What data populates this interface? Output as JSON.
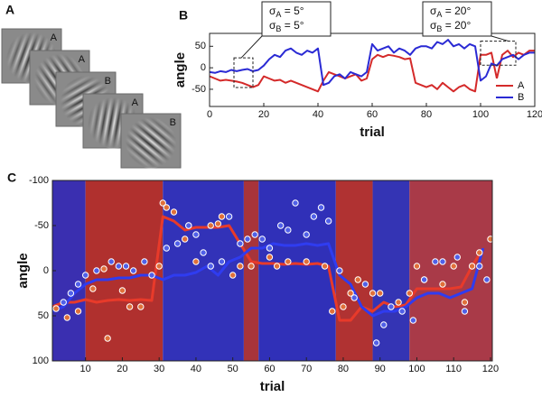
{
  "panel_labels": [
    "A",
    "B",
    "C"
  ],
  "stimuli": {
    "labels": [
      "A",
      "A",
      "B",
      "A",
      "B"
    ],
    "colors": [
      "#d42a2a",
      "#d42a2a",
      "#3a3ac8",
      "#d42a2a",
      "#3a3ac8"
    ]
  },
  "chart_data": [
    {
      "type": "line",
      "xlabel": "trial",
      "ylabel": "angle",
      "xlim": [
        0,
        120
      ],
      "ylim": [
        -90,
        80
      ],
      "xticks": [
        0,
        20,
        40,
        60,
        80,
        100,
        120
      ],
      "yticks": [
        -50,
        0,
        50
      ],
      "grid": false,
      "legend": "lower right",
      "x": [
        0,
        2,
        4,
        6,
        8,
        10,
        12,
        14,
        16,
        18,
        20,
        22,
        24,
        26,
        28,
        30,
        32,
        34,
        36,
        38,
        40,
        42,
        44,
        46,
        48,
        50,
        52,
        54,
        56,
        58,
        60,
        62,
        64,
        66,
        68,
        70,
        72,
        74,
        76,
        78,
        80,
        82,
        84,
        86,
        88,
        90,
        92,
        94,
        96,
        98,
        100,
        102,
        104,
        106,
        108,
        110,
        112,
        114,
        116,
        118,
        120
      ],
      "series": [
        {
          "name": "A",
          "color": "#d42a2a",
          "values": [
            -20,
            -25,
            -30,
            -28,
            -30,
            -32,
            -35,
            -40,
            -45,
            -40,
            -20,
            -25,
            -30,
            -28,
            -35,
            -30,
            -35,
            -40,
            -45,
            -50,
            -55,
            -30,
            -10,
            -15,
            -20,
            -25,
            -20,
            -15,
            -30,
            -25,
            20,
            30,
            25,
            30,
            28,
            25,
            20,
            22,
            -35,
            -40,
            -45,
            -40,
            -50,
            -35,
            -45,
            -55,
            -45,
            -40,
            -50,
            -55,
            30,
            30,
            35,
            -25,
            30,
            40,
            25,
            35,
            30,
            40,
            40
          ]
        },
        {
          "name": "B",
          "color": "#2a2ad4",
          "values": [
            -10,
            -12,
            -8,
            -10,
            -5,
            -8,
            -5,
            -3,
            -8,
            -5,
            5,
            20,
            30,
            25,
            40,
            45,
            35,
            30,
            40,
            35,
            45,
            -40,
            -35,
            -20,
            -15,
            -25,
            -10,
            -15,
            -20,
            -10,
            55,
            40,
            45,
            50,
            35,
            45,
            40,
            30,
            45,
            50,
            50,
            45,
            60,
            55,
            65,
            50,
            55,
            45,
            55,
            50,
            -30,
            -20,
            10,
            5,
            20,
            25,
            30,
            20,
            30,
            35,
            35
          ]
        }
      ],
      "annotations": [
        {
          "lines": [
            {
              "symbol": "σ",
              "subscript": "A",
              "text": " = 5°"
            },
            {
              "symbol": "σ",
              "subscript": "B",
              "text": " = 5°"
            }
          ],
          "xrange": [
            9,
            16
          ],
          "yrange": [
            -46,
            23
          ]
        },
        {
          "lines": [
            {
              "symbol": "σ",
              "subscript": "A",
              "text": " = 20°"
            },
            {
              "symbol": "σ",
              "subscript": "B",
              "text": " = 20°"
            }
          ],
          "xrange": [
            100,
            113
          ],
          "yrange": [
            6,
            62
          ]
        }
      ]
    },
    {
      "type": "line",
      "xlabel": "trial",
      "ylabel": "angle",
      "xlim": [
        1,
        120.5
      ],
      "ylim": [
        -100,
        100
      ],
      "y_inverted": true,
      "xticks": [
        10,
        20,
        30,
        40,
        50,
        60,
        70,
        80,
        90,
        100,
        110,
        120
      ],
      "yticks": [
        -100,
        -50,
        0,
        50,
        100
      ],
      "background_bands": [
        {
          "x": [
            1,
            10
          ],
          "color": "#3a2fb0"
        },
        {
          "x": [
            10,
            31
          ],
          "color": "#b0302e"
        },
        {
          "x": [
            31,
            53
          ],
          "color": "#3232b8"
        },
        {
          "x": [
            53,
            57
          ],
          "color": "#a8343a"
        },
        {
          "x": [
            57,
            78
          ],
          "color": "#3030b8"
        },
        {
          "x": [
            78,
            88
          ],
          "color": "#b03232"
        },
        {
          "x": [
            88,
            98
          ],
          "color": "#3434b4"
        },
        {
          "x": [
            98,
            120.5
          ],
          "color": "#a93a48"
        }
      ],
      "x": [
        1,
        4,
        7,
        10,
        13,
        16,
        19,
        22,
        25,
        28,
        31,
        34,
        37,
        40,
        43,
        46,
        49,
        52,
        55,
        58,
        61,
        64,
        67,
        70,
        73,
        76,
        79,
        82,
        85,
        88,
        91,
        94,
        97,
        100,
        103,
        106,
        109,
        112,
        115,
        118
      ],
      "series": [
        {
          "color": "#e83a2a",
          "values": [
            40,
            35,
            35,
            32,
            35,
            33,
            32,
            33,
            32,
            33,
            -60,
            -55,
            -45,
            -48,
            -48,
            -48,
            -50,
            -30,
            -10,
            -8,
            -8,
            -7,
            -8,
            -7,
            -8,
            -5,
            55,
            55,
            40,
            45,
            35,
            40,
            38,
            20,
            20,
            20,
            20,
            18,
            -5,
            -25
          ]
        },
        {
          "color": "#2f3cf0",
          "values": [
            45,
            40,
            25,
            15,
            10,
            10,
            8,
            8,
            5,
            5,
            10,
            5,
            5,
            2,
            -5,
            5,
            -10,
            -15,
            -25,
            -25,
            -30,
            -28,
            -28,
            -30,
            -28,
            -30,
            5,
            15,
            40,
            50,
            45,
            45,
            40,
            30,
            25,
            25,
            30,
            25,
            20,
            -25
          ]
        }
      ],
      "observations": [
        {
          "color": "#e0703a",
          "x": [
            2,
            5,
            8,
            12,
            15,
            16,
            20,
            22,
            25,
            30,
            31,
            32,
            34,
            37,
            38,
            40,
            44,
            46,
            47,
            50,
            52,
            55,
            60,
            62,
            65,
            70,
            75,
            77,
            80,
            82,
            84,
            88,
            90,
            95,
            98,
            100,
            102,
            107,
            110,
            113,
            115,
            117,
            120
          ],
          "y": [
            42,
            52,
            45,
            20,
            -2,
            75,
            22,
            40,
            40,
            -5,
            -75,
            -70,
            -65,
            -35,
            -50,
            -10,
            -50,
            -52,
            -60,
            5,
            -5,
            -5,
            -15,
            -5,
            -10,
            -10,
            -5,
            45,
            40,
            25,
            10,
            25,
            25,
            35,
            25,
            -5,
            10,
            15,
            -5,
            35,
            -5,
            -20,
            -35
          ]
        },
        {
          "color": "#5060e8",
          "x": [
            4,
            6,
            8,
            10,
            13,
            17,
            19,
            21,
            23,
            26,
            28,
            32,
            35,
            38,
            40,
            42,
            44,
            47,
            49,
            52,
            54,
            56,
            58,
            60,
            63,
            65,
            67,
            70,
            72,
            74,
            76,
            79,
            83,
            86,
            89,
            91,
            93,
            96,
            99,
            102,
            105,
            107,
            111,
            113,
            117,
            119
          ],
          "y": [
            35,
            25,
            15,
            5,
            0,
            -10,
            -5,
            -5,
            0,
            -10,
            5,
            -25,
            -30,
            -50,
            -40,
            -20,
            -5,
            -10,
            -60,
            -30,
            -35,
            -40,
            -35,
            -25,
            -50,
            -45,
            -75,
            -40,
            -60,
            -70,
            -55,
            0,
            30,
            15,
            80,
            60,
            40,
            45,
            55,
            10,
            -10,
            -10,
            -15,
            45,
            -5,
            10
          ]
        }
      ]
    }
  ]
}
